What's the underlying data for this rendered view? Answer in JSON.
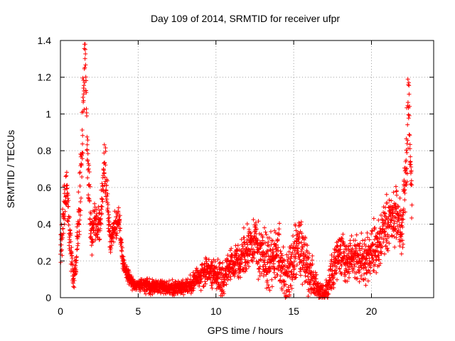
{
  "chart_data": {
    "type": "scatter",
    "title": "Day 109 of 2014, SRMTID for receiver ufpr",
    "xlabel": "GPS time / hours",
    "ylabel": "SRMTID / TECUs",
    "xlim": [
      0,
      24
    ],
    "ylim": [
      0,
      1.4
    ],
    "xticks": [
      0,
      5,
      10,
      15,
      20
    ],
    "yticks": [
      0,
      0.2,
      0.4,
      0.6,
      0.8,
      1,
      1.2,
      1.4
    ],
    "grid": true,
    "marker": "+",
    "color": "#ff0000",
    "series": [
      {
        "name": "SRMTID",
        "profile_x": [
          0,
          0.2,
          0.4,
          0.6,
          0.8,
          1.0,
          1.2,
          1.4,
          1.5,
          1.6,
          1.8,
          2.0,
          2.2,
          2.5,
          2.8,
          3.0,
          3.2,
          3.5,
          3.8,
          4.0,
          4.3,
          4.6,
          5.0,
          6.0,
          7.0,
          8.0,
          8.5,
          9.0,
          9.5,
          10.0,
          10.5,
          11.0,
          11.5,
          12.0,
          12.5,
          13.0,
          13.5,
          14.0,
          14.5,
          15.0,
          15.3,
          15.6,
          16.0,
          16.5,
          17.0,
          17.5,
          18.0,
          18.5,
          19.0,
          19.5,
          20.0,
          20.5,
          21.0,
          21.5,
          22.0,
          22.2,
          22.4,
          22.6
        ],
        "profile_y": [
          0.25,
          0.45,
          0.6,
          0.35,
          0.1,
          0.15,
          0.5,
          0.85,
          1.2,
          1.3,
          0.6,
          0.35,
          0.4,
          0.35,
          0.7,
          0.6,
          0.3,
          0.4,
          0.42,
          0.2,
          0.12,
          0.08,
          0.07,
          0.06,
          0.05,
          0.06,
          0.08,
          0.13,
          0.15,
          0.12,
          0.1,
          0.18,
          0.2,
          0.25,
          0.3,
          0.22,
          0.18,
          0.25,
          0.1,
          0.22,
          0.28,
          0.25,
          0.15,
          0.05,
          0.02,
          0.15,
          0.25,
          0.2,
          0.22,
          0.2,
          0.25,
          0.3,
          0.4,
          0.45,
          0.35,
          0.7,
          1.1,
          0.55
        ],
        "spread_y": [
          0.05,
          0.12,
          0.12,
          0.1,
          0.06,
          0.08,
          0.15,
          0.2,
          0.15,
          0.1,
          0.15,
          0.1,
          0.08,
          0.1,
          0.1,
          0.1,
          0.08,
          0.06,
          0.05,
          0.04,
          0.03,
          0.03,
          0.03,
          0.03,
          0.03,
          0.03,
          0.04,
          0.06,
          0.06,
          0.07,
          0.08,
          0.08,
          0.09,
          0.1,
          0.12,
          0.12,
          0.12,
          0.12,
          0.1,
          0.12,
          0.12,
          0.12,
          0.1,
          0.05,
          0.03,
          0.08,
          0.1,
          0.1,
          0.08,
          0.1,
          0.1,
          0.12,
          0.12,
          0.12,
          0.1,
          0.15,
          0.2,
          0.12
        ],
        "points_per_hour": 120
      }
    ]
  }
}
